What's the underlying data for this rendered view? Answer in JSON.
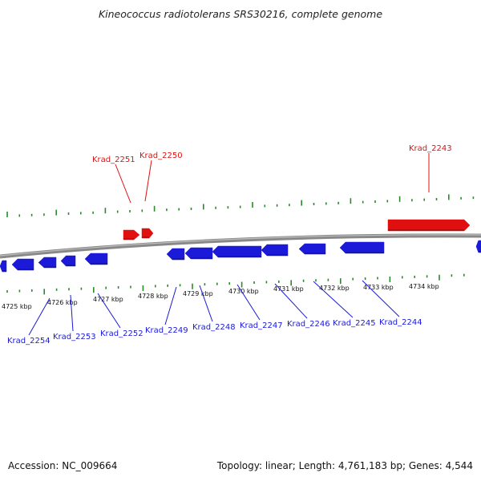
{
  "title": "Kineococcus radiotolerans SRS30216, complete genome",
  "footer": {
    "accession": "Accession: NC_009664",
    "summary": "Topology: linear; Length: 4,761,183 bp; Genes: 4,544"
  },
  "colors": {
    "forward_gene": "#e01010",
    "reverse_gene": "#1a1ad8",
    "forward_label": "#e01010",
    "reverse_label": "#1a1ad8",
    "tick": "#2a8a2a",
    "backbone": "#888888"
  },
  "kbp_labels": [
    "4725 kbp",
    "4726 kbp",
    "4727 kbp",
    "4728 kbp",
    "4729 kbp",
    "4730 kbp",
    "4731 kbp",
    "4732 kbp",
    "4733 kbp",
    "4734 kbp"
  ],
  "forward_genes": [
    "Krad_2251",
    "Krad_2250",
    "Krad_2243"
  ],
  "reverse_genes": [
    "Krad_2254",
    "Krad_2253",
    "Krad_2252",
    "Krad_2249",
    "Krad_2248",
    "Krad_2247",
    "Krad_2246",
    "Krad_2245",
    "Krad_2244"
  ]
}
